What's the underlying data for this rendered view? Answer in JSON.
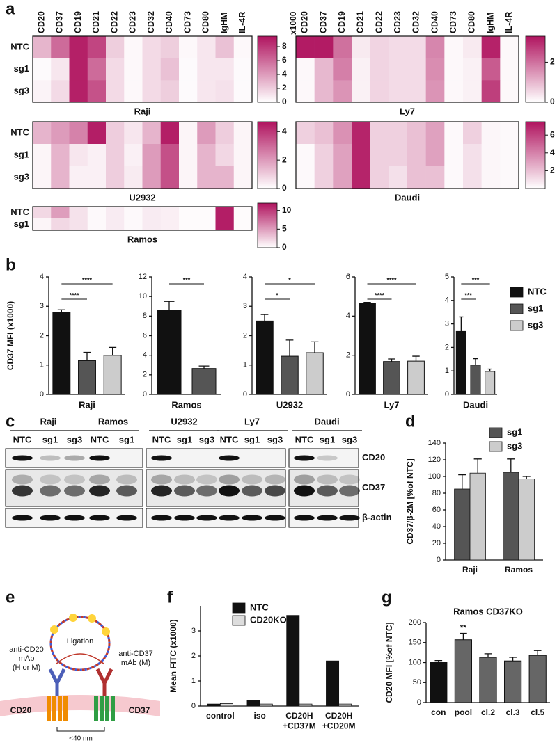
{
  "panels": [
    "a",
    "b",
    "c",
    "d",
    "e",
    "f",
    "g"
  ],
  "chart_data": [
    {
      "type": "heatmap",
      "title": "Raji",
      "color": "#b0145f",
      "categories": [
        "CD20",
        "CD37",
        "CD19",
        "CD21",
        "CD22",
        "CD23",
        "CD32",
        "CD40",
        "CD73",
        "CD80",
        "IgHM",
        "IL-4R"
      ],
      "category_colors": [
        "#a0175a",
        "#a0175a",
        "#111",
        "#111",
        "#111",
        "#111",
        "#111",
        "#111",
        "#111",
        "#111",
        "#111",
        "#111"
      ],
      "rows": [
        "NTC",
        "sg1",
        "sg3"
      ],
      "values": [
        [
          3,
          6,
          9,
          7.5,
          2,
          0.3,
          1.5,
          2,
          0.3,
          1,
          2.5,
          0.3
        ],
        [
          0.2,
          1,
          9,
          6,
          1.5,
          0.3,
          1.5,
          2.5,
          0.2,
          1,
          1,
          0.2
        ],
        [
          0.5,
          1.5,
          9,
          7,
          1.5,
          0.3,
          1.5,
          2,
          0.2,
          1,
          1.2,
          0.2
        ]
      ],
      "zlim": [
        0,
        9.5
      ],
      "zticks": [
        0,
        2,
        4,
        6,
        8
      ],
      "zlabel": "x1000"
    },
    {
      "type": "heatmap",
      "title": "Ly7",
      "color": "#b0145f",
      "categories": [
        "CD20",
        "CD37",
        "CD19",
        "CD21",
        "CD22",
        "CD23",
        "CD32",
        "CD40",
        "CD73",
        "CD80",
        "IgHM",
        "IL-4R"
      ],
      "category_colors": [
        "#a0175a",
        "#a0175a",
        "#111",
        "#111",
        "#111",
        "#111",
        "#111",
        "#111",
        "#111",
        "#111",
        "#111",
        "#111"
      ],
      "values": [
        [
          3.2,
          3.2,
          2,
          0.3,
          0.6,
          0.5,
          0.5,
          1.7,
          0.1,
          0.3,
          3.1,
          0.1
        ],
        [
          0.1,
          1,
          1.8,
          0.2,
          0.6,
          0.5,
          0.5,
          1.6,
          0.1,
          0.2,
          2.3,
          0.1
        ],
        [
          0.1,
          1,
          1.5,
          0.2,
          0.6,
          0.5,
          0.5,
          1.5,
          0.1,
          0.2,
          2.7,
          0.1
        ]
      ],
      "zlim": [
        0,
        3.3
      ],
      "zticks": [
        0,
        2
      ],
      "zlabel": "x1000"
    },
    {
      "type": "heatmap",
      "title": "U2932",
      "color": "#b0145f",
      "rows": [
        "NTC",
        "sg1",
        "sg3"
      ],
      "values": [
        [
          1.5,
          2,
          2.5,
          4.5,
          1,
          0.5,
          1.5,
          4.5,
          0.2,
          2,
          1,
          0.2
        ],
        [
          0.2,
          1.5,
          0.5,
          0.3,
          1,
          0.3,
          2,
          3.5,
          0.2,
          1.5,
          0.8,
          0.2
        ],
        [
          0.2,
          1.5,
          0.3,
          0.3,
          1,
          0.4,
          2,
          3.5,
          0.2,
          1.5,
          1.5,
          0.2
        ]
      ],
      "zlim": [
        0,
        4.7
      ],
      "zticks": [
        0,
        2,
        4
      ]
    },
    {
      "type": "heatmap",
      "title": "Daudi",
      "color": "#b0145f",
      "values": [
        [
          1.5,
          2,
          3.5,
          7,
          1.5,
          1.5,
          2,
          3,
          0.2,
          1.5,
          0.3,
          0.2
        ],
        [
          0.2,
          1.5,
          3,
          7,
          1.5,
          1.5,
          2,
          3,
          0.2,
          1,
          0.3,
          0.2
        ],
        [
          0.2,
          1.5,
          3,
          7,
          1.5,
          1,
          2,
          2,
          0.2,
          1,
          0.3,
          0.2
        ]
      ],
      "zlim": [
        0,
        7.5
      ],
      "zticks": [
        2,
        4,
        6
      ]
    },
    {
      "type": "heatmap",
      "title": "Ramos",
      "color": "#b0145f",
      "rows": [
        "NTC",
        "sg1"
      ],
      "values": [
        [
          2,
          5,
          1.5,
          0.3,
          1,
          0.3,
          1,
          0.8,
          0.2,
          0.2,
          11.5,
          0.2
        ],
        [
          0.5,
          2,
          1.5,
          0.3,
          1,
          0.3,
          1,
          0.8,
          0.2,
          0.2,
          11.5,
          0.2
        ]
      ],
      "zlim": [
        0,
        12
      ],
      "zticks": [
        0,
        5,
        10
      ]
    },
    {
      "type": "bar",
      "title": "Raji",
      "ylabel": "CD37 MFI (x1000)",
      "values": [
        2.8,
        1.15,
        1.33
      ],
      "errors": [
        0.08,
        0.28,
        0.27
      ],
      "colors": [
        "#111111",
        "#555555",
        "#cccccc"
      ],
      "ylim": [
        0,
        4
      ],
      "yticks": [
        0,
        1,
        2,
        3,
        4
      ],
      "annotations": [
        {
          "label": "****",
          "from": 0,
          "to": 1
        },
        {
          "label": "****",
          "from": 0,
          "to": 2
        }
      ]
    },
    {
      "type": "bar",
      "title": "Ramos",
      "values": [
        8.6,
        2.65
      ],
      "errors": [
        0.9,
        0.25
      ],
      "colors": [
        "#111111",
        "#555555"
      ],
      "ylim": [
        0,
        12
      ],
      "yticks": [
        0,
        2,
        4,
        6,
        8,
        10,
        12
      ],
      "annotations": [
        {
          "label": "***",
          "from": 0,
          "to": 1
        }
      ]
    },
    {
      "type": "bar",
      "title": "U2932",
      "values": [
        2.5,
        1.3,
        1.42
      ],
      "errors": [
        0.22,
        0.55,
        0.37
      ],
      "colors": [
        "#111111",
        "#555555",
        "#cccccc"
      ],
      "ylim": [
        0,
        4
      ],
      "yticks": [
        0,
        1,
        2,
        3,
        4
      ],
      "annotations": [
        {
          "label": "*",
          "from": 0,
          "to": 1
        },
        {
          "label": "*",
          "from": 0,
          "to": 2
        }
      ]
    },
    {
      "type": "bar",
      "title": "Ly7",
      "values": [
        4.65,
        1.68,
        1.7
      ],
      "errors": [
        0.05,
        0.13,
        0.25
      ],
      "colors": [
        "#111111",
        "#555555",
        "#cccccc"
      ],
      "ylim": [
        0,
        6
      ],
      "yticks": [
        0,
        2,
        4,
        6
      ],
      "annotations": [
        {
          "label": "****",
          "from": 0,
          "to": 1
        },
        {
          "label": "****",
          "from": 0,
          "to": 2
        }
      ]
    },
    {
      "type": "bar",
      "title": "Daudi",
      "values": [
        2.68,
        1.25,
        0.98
      ],
      "errors": [
        0.62,
        0.27,
        0.1
      ],
      "colors": [
        "#111111",
        "#555555",
        "#cccccc"
      ],
      "ylim": [
        0,
        5
      ],
      "yticks": [
        0,
        1,
        2,
        3,
        4,
        5
      ],
      "annotations": [
        {
          "label": "***",
          "from": 0,
          "to": 1
        },
        {
          "label": "***",
          "from": 0,
          "to": 2
        }
      ],
      "legend": [
        "NTC",
        "sg1",
        "sg3"
      ]
    },
    {
      "type": "grouped_bar",
      "ylabel": "CD37/β-2M [%of NTC]",
      "categories": [
        "Raji",
        "Ramos"
      ],
      "series": [
        {
          "name": "sg1",
          "color": "#555555",
          "values": [
            85,
            105
          ],
          "errors": [
            17,
            16
          ]
        },
        {
          "name": "sg3",
          "color": "#cccccc",
          "values": [
            104,
            97
          ],
          "errors": [
            17,
            3
          ]
        }
      ],
      "ylim": [
        0,
        140
      ],
      "yticks": [
        0,
        20,
        40,
        60,
        80,
        100,
        120,
        140
      ]
    },
    {
      "type": "grouped_bar",
      "ylabel": "Mean FITC (x1000)",
      "categories": [
        "control",
        "iso",
        "CD20H\n+CD37M",
        "CD20H\n+CD20M"
      ],
      "series": [
        {
          "name": "NTC",
          "color": "#111111",
          "values": [
            0.08,
            0.22,
            3.62,
            1.8
          ]
        },
        {
          "name": "CD20KO",
          "color": "#dddddd",
          "values": [
            0.1,
            0.08,
            0.08,
            0.08
          ]
        }
      ],
      "ylim": [
        0,
        4
      ],
      "yticks": [
        0,
        1,
        2,
        3
      ]
    },
    {
      "type": "bar",
      "title": "Ramos CD37KO",
      "ylabel": "CD20 MFI [%of NTC]",
      "categories": [
        "con",
        "pool",
        "cl.2",
        "cl.3",
        "cl.5"
      ],
      "values": [
        100,
        157,
        113,
        104,
        118
      ],
      "errors": [
        5,
        16,
        9,
        9,
        12
      ],
      "colors": [
        "#111111",
        "#666666",
        "#666666",
        "#666666",
        "#666666"
      ],
      "ylim": [
        0,
        200
      ],
      "yticks": [
        0,
        50,
        100,
        150,
        200
      ],
      "annotations": [
        {
          "label": "**",
          "at": 1
        }
      ]
    }
  ],
  "blot": {
    "groups": [
      {
        "name": "Raji",
        "lanes": [
          "NTC",
          "sg1",
          "sg3"
        ]
      },
      {
        "name": "Ramos",
        "lanes": [
          "NTC",
          "sg1"
        ]
      },
      {
        "name": "U2932",
        "lanes": [
          "NTC",
          "sg1",
          "sg3"
        ]
      },
      {
        "name": "Ly7",
        "lanes": [
          "NTC",
          "sg1",
          "sg3"
        ]
      },
      {
        "name": "Daudi",
        "lanes": [
          "NTC",
          "sg1",
          "sg3"
        ]
      }
    ],
    "rows": [
      "CD20",
      "CD37",
      "β-actin"
    ]
  },
  "diagram": {
    "ligation": "Ligation",
    "antibody_left": [
      "anti-CD20",
      "mAb",
      "(H or M)"
    ],
    "antibody_right": [
      "anti-CD37",
      "mAb (M)"
    ],
    "receptor_left": "CD20",
    "receptor_right": "CD37",
    "distance": "<40 nm"
  }
}
